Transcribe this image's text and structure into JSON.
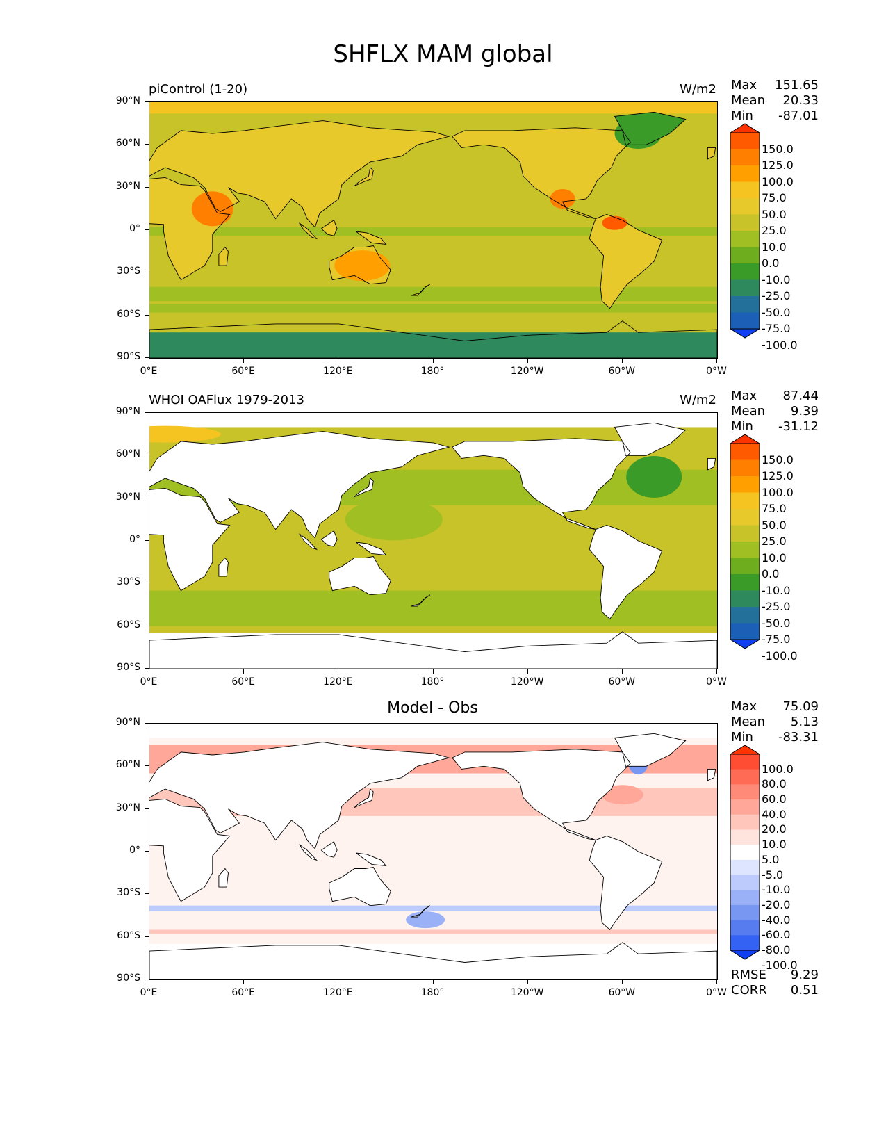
{
  "figure": {
    "title": "SHFLX MAM global"
  },
  "axes": {
    "lat_ticks": [
      "90°N",
      "60°N",
      "30°N",
      "0°",
      "30°S",
      "60°S",
      "90°S"
    ],
    "lon_ticks": [
      "0°E",
      "60°E",
      "120°E",
      "180°",
      "120°W",
      "60°W",
      "0°W"
    ]
  },
  "panels": [
    {
      "title_left": "piControl (1-20)",
      "title_right": "W/m2",
      "title_center": "",
      "stats": [
        {
          "label": "Max",
          "value": "151.65"
        },
        {
          "label": "Mean",
          "value": "20.33"
        },
        {
          "label": "Min",
          "value": "-87.01"
        }
      ],
      "colorbar": {
        "labels": [
          "150.0",
          "125.0",
          "100.0",
          "75.0",
          "50.0",
          "25.0",
          "10.0",
          "0.0",
          "-10.0",
          "-25.0",
          "-50.0",
          "-75.0",
          "-100.0"
        ],
        "colors": [
          "#ff3300",
          "#ff5a00",
          "#ff7f00",
          "#ffa000",
          "#f6c421",
          "#e7c92c",
          "#c7c328",
          "#9fbf22",
          "#6ead1e",
          "#3b9b28",
          "#2e8a5c",
          "#23709a",
          "#1b5fb6",
          "#0f3ff0"
        ]
      },
      "extra_stats": []
    },
    {
      "title_left": "WHOI OAFlux 1979-2013",
      "title_right": "W/m2",
      "title_center": "",
      "stats": [
        {
          "label": "Max",
          "value": "87.44"
        },
        {
          "label": "Mean",
          "value": "9.39"
        },
        {
          "label": "Min",
          "value": "-31.12"
        }
      ],
      "colorbar": {
        "labels": [
          "150.0",
          "125.0",
          "100.0",
          "75.0",
          "50.0",
          "25.0",
          "10.0",
          "0.0",
          "-10.0",
          "-25.0",
          "-50.0",
          "-75.0",
          "-100.0"
        ],
        "colors": [
          "#ff3300",
          "#ff5a00",
          "#ff7f00",
          "#ffa000",
          "#f6c421",
          "#e7c92c",
          "#c7c328",
          "#9fbf22",
          "#6ead1e",
          "#3b9b28",
          "#2e8a5c",
          "#23709a",
          "#1b5fb6",
          "#0f3ff0"
        ]
      },
      "extra_stats": []
    },
    {
      "title_left": "",
      "title_right": "",
      "title_center": "Model - Obs",
      "stats": [
        {
          "label": "Max",
          "value": "75.09"
        },
        {
          "label": "Mean",
          "value": "5.13"
        },
        {
          "label": "Min",
          "value": "-83.31"
        }
      ],
      "colorbar": {
        "labels": [
          "100.0",
          "80.0",
          "60.0",
          "40.0",
          "20.0",
          "10.0",
          "5.0",
          "-5.0",
          "-10.0",
          "-20.0",
          "-40.0",
          "-60.0",
          "-80.0",
          "-100.0"
        ],
        "colors": [
          "#ff3300",
          "#ff4d33",
          "#ff6b55",
          "#ff8a77",
          "#ffa899",
          "#ffc7bb",
          "#ffe3dd",
          "#ffffff",
          "#dde5ff",
          "#bccbfb",
          "#9ab1f7",
          "#7897f3",
          "#567cef",
          "#3462f3",
          "#0f3ff0"
        ]
      },
      "extra_stats": [
        {
          "label": "RMSE",
          "value": "9.29"
        },
        {
          "label": "CORR",
          "value": "0.51"
        }
      ]
    }
  ],
  "map_palette": {
    "land_model": "#e7c92c",
    "ocean_model": "#c7c328",
    "ocean_obs": "#c7c328",
    "diff_pos": "#ffc7bb",
    "diff_neg": "#bccbfb"
  }
}
